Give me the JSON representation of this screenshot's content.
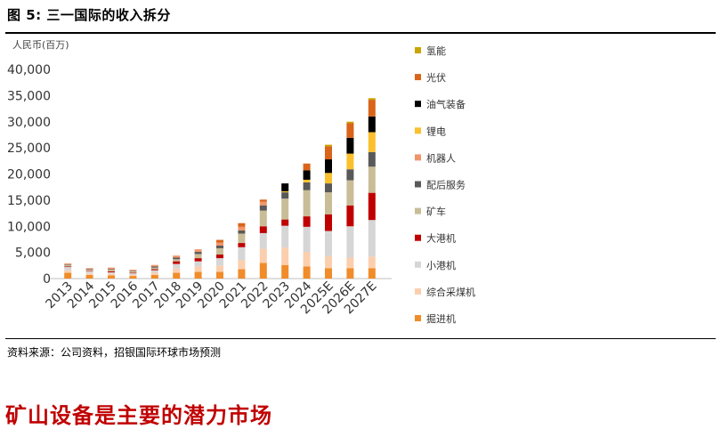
{
  "figure_title": "图 5: 三一国际的收入拆分",
  "source_note": "资料来源：公司资料，招银国际环球市场预测",
  "section_heading": "矿山设备是主要的潜力市场",
  "chart_data": {
    "type": "bar",
    "stacked": true,
    "ylabel": "人民币(百万)",
    "ylim": [
      0,
      40000
    ],
    "yticks": [
      "0",
      "5,000",
      "10,000",
      "15,000",
      "20,000",
      "25,000",
      "30,000",
      "35,000",
      "40,000"
    ],
    "ytick_values": [
      0,
      5000,
      10000,
      15000,
      20000,
      25000,
      30000,
      35000,
      40000
    ],
    "grid": false,
    "legend_position": "right",
    "categories": [
      "2013",
      "2014",
      "2015",
      "2016",
      "2017",
      "2018",
      "2019",
      "2020",
      "2021",
      "2022",
      "2023",
      "2024",
      "2025E",
      "2026E",
      "2027E"
    ],
    "series": [
      {
        "name": "掘进机",
        "color": "#f08c2a",
        "values": [
          1100,
          700,
          600,
          500,
          700,
          1100,
          1300,
          1300,
          1800,
          3000,
          2600,
          2300,
          2000,
          2000,
          2000
        ]
      },
      {
        "name": "综合采煤机",
        "color": "#fbcfae",
        "values": [
          500,
          300,
          300,
          200,
          400,
          800,
          1000,
          1200,
          1700,
          2700,
          3300,
          2800,
          2300,
          2000,
          2200
        ]
      },
      {
        "name": "小港机",
        "color": "#d6d6d6",
        "values": [
          600,
          400,
          300,
          300,
          500,
          900,
          1000,
          1400,
          2500,
          3000,
          4200,
          4800,
          4800,
          6000,
          7000
        ]
      },
      {
        "name": "大港机",
        "color": "#c00000",
        "values": [
          100,
          100,
          200,
          100,
          200,
          500,
          600,
          700,
          800,
          1300,
          1200,
          2000,
          3200,
          4000,
          5200
        ]
      },
      {
        "name": "矿车",
        "color": "#c9bd98",
        "values": [
          300,
          200,
          300,
          300,
          300,
          400,
          800,
          1200,
          1800,
          3000,
          4000,
          5000,
          4200,
          4800,
          5000
        ]
      },
      {
        "name": "配后服务",
        "color": "#595959",
        "values": [
          100,
          100,
          100,
          100,
          200,
          300,
          400,
          500,
          600,
          1000,
          1200,
          1500,
          1700,
          2100,
          2800
        ]
      },
      {
        "name": "机器人",
        "color": "#f0956a",
        "values": [
          200,
          200,
          300,
          200,
          300,
          400,
          500,
          600,
          700,
          700,
          0,
          0,
          0,
          0,
          0
        ]
      },
      {
        "name": "锂电",
        "color": "#fbc02d",
        "values": [
          0,
          0,
          0,
          0,
          0,
          0,
          0,
          0,
          0,
          0,
          200,
          500,
          2000,
          3000,
          3800
        ]
      },
      {
        "name": "油气装备",
        "color": "#000000",
        "values": [
          0,
          0,
          0,
          0,
          0,
          0,
          0,
          0,
          0,
          0,
          1500,
          1800,
          2600,
          3000,
          3000
        ]
      },
      {
        "name": "光伏",
        "color": "#d9641a",
        "values": [
          0,
          0,
          0,
          0,
          0,
          0,
          0,
          500,
          700,
          400,
          0,
          1300,
          2500,
          2800,
          3200
        ]
      },
      {
        "name": "氢能",
        "color": "#c9a400",
        "values": [
          0,
          0,
          0,
          0,
          0,
          0,
          0,
          0,
          0,
          0,
          0,
          0,
          300,
          300,
          300
        ]
      }
    ]
  }
}
